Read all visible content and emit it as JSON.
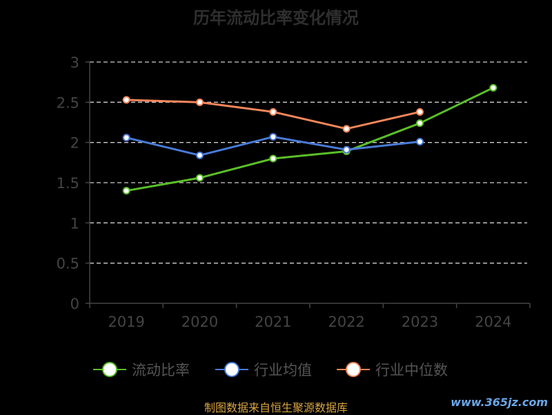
{
  "title": "历年流动比率变化情况",
  "source_note": "制图数据来自恒生聚源数据库",
  "watermark": "www.365jz.com",
  "chart_data": {
    "type": "line",
    "categories": [
      "2019",
      "2020",
      "2021",
      "2022",
      "2023",
      "2024"
    ],
    "ylim": [
      0,
      3
    ],
    "yticks": [
      0,
      0.5,
      1,
      1.5,
      2,
      2.5,
      3
    ],
    "ytick_labels": [
      "0",
      "0.5",
      "1",
      "1.5",
      "2",
      "2.5",
      "3"
    ],
    "grid": true,
    "legend_position": "bottom",
    "series": [
      {
        "name": "流动比率",
        "color": "#5cbf2a",
        "values": [
          1.4,
          1.56,
          1.8,
          1.89,
          2.24,
          2.68
        ]
      },
      {
        "name": "行业均值",
        "color": "#4a7bd8",
        "values": [
          2.06,
          1.84,
          2.07,
          1.91,
          2.01,
          null
        ]
      },
      {
        "name": "行业中位数",
        "color": "#f5865a",
        "values": [
          2.53,
          2.5,
          2.38,
          2.17,
          2.38,
          null
        ]
      }
    ]
  }
}
